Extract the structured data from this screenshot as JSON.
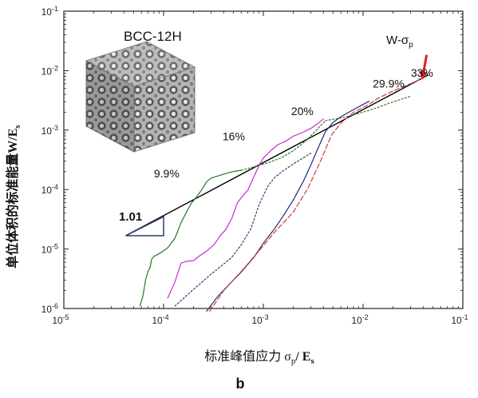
{
  "chart_data": {
    "type": "line",
    "scale": "log-log",
    "ylabel": "单位体积的标准能量W/E",
    "ylabel_sub": "s",
    "xlabel": "标准峰值应力 σ",
    "xlabel_sub1": "p",
    "xlabel_mid": "/ E",
    "xlabel_sub2": "s",
    "panel_label": "b",
    "inset_label": "BCC-12H",
    "xlim": [
      1e-05,
      0.1
    ],
    "ylim": [
      1e-06,
      0.1
    ],
    "x_ticks": [
      {
        "value": 1e-05,
        "base": "10",
        "exp": "-5"
      },
      {
        "value": 0.0001,
        "base": "10",
        "exp": "-4"
      },
      {
        "value": 0.001,
        "base": "10",
        "exp": "-3"
      },
      {
        "value": 0.01,
        "base": "10",
        "exp": "-2"
      },
      {
        "value": 0.1,
        "base": "10",
        "exp": "-1"
      }
    ],
    "y_ticks": [
      {
        "value": 1e-06,
        "base": "10",
        "exp": "-6"
      },
      {
        "value": 1e-05,
        "base": "10",
        "exp": "-5"
      },
      {
        "value": 0.0001,
        "base": "10",
        "exp": "-4"
      },
      {
        "value": 0.001,
        "base": "10",
        "exp": "-3"
      },
      {
        "value": 0.01,
        "base": "10",
        "exp": "-2"
      },
      {
        "value": 0.1,
        "base": "10",
        "exp": "-1"
      }
    ],
    "series": [
      {
        "name": "W-σp",
        "label_text": "W-σ",
        "label_sub": "p",
        "color": "#000000",
        "dash": "solid",
        "x": [
          4.2e-05,
          0.045
        ],
        "y": [
          1.68e-05,
          0.0085
        ]
      },
      {
        "color": "#1f7a2a",
        "dash": "solid",
        "x": [
          5.8e-05,
          6.2e-05,
          6.6e-05,
          7e-05,
          7.3e-05,
          7.6e-05,
          8e-05,
          8.5e-05,
          9.5e-05,
          0.00011,
          0.00013,
          0.00015,
          0.00017,
          0.00019,
          0.00021,
          0.00024,
          0.00027,
          0.0003,
          0.00033,
          0.00036,
          0.0004,
          0.00045,
          0.0005,
          0.00055,
          0.0006
        ],
        "y": [
          1.1e-06,
          1.6e-06,
          3e-06,
          4.3e-06,
          4.8e-06,
          6.8e-06,
          7.5e-06,
          7.9e-06,
          8.8e-06,
          1.05e-05,
          1.52e-05,
          2.8e-05,
          4.2e-05,
          5.9e-05,
          7.2e-05,
          9.8e-05,
          0.000136,
          0.000156,
          0.000164,
          0.000172,
          0.000182,
          0.000192,
          0.000201,
          0.000206,
          0.000211
        ]
      },
      {
        "color": "#1f7a2a",
        "dash": "dotted",
        "x": [
          0.0006,
          0.0008,
          0.0011,
          0.0015,
          0.002,
          0.0027,
          0.0035,
          0.0042
        ],
        "y": [
          0.000211,
          0.00024,
          0.00028,
          0.00034,
          0.00045,
          0.00067,
          0.00105,
          0.00145
        ]
      },
      {
        "color": "#cc2bcc",
        "dash": "solid",
        "x": [
          0.00011,
          0.00013,
          0.00015,
          0.00017,
          0.0002,
          0.00023,
          0.00027,
          0.00032,
          0.00037,
          0.00042,
          0.00048,
          0.00055,
          0.00062,
          0.0007,
          0.0008,
          0.0009,
          0.001,
          0.0012,
          0.0014,
          0.0017,
          0.002,
          0.0025,
          0.003,
          0.0035,
          0.004
        ],
        "y": [
          1.5e-06,
          2.8e-06,
          5.8e-06,
          6.2e-06,
          6.4e-06,
          7.7e-06,
          9.2e-06,
          1.18e-05,
          1.68e-05,
          2.12e-05,
          3.2e-05,
          6e-05,
          7.8e-05,
          9.8e-05,
          0.000162,
          0.00025,
          0.00034,
          0.00046,
          0.00057,
          0.00066,
          0.00079,
          0.00092,
          0.00107,
          0.00128,
          0.00154
        ]
      },
      {
        "color": "#2c3e73",
        "dash": "dotted",
        "x": [
          0.00013,
          0.00016,
          0.0002,
          0.00025,
          0.0003,
          0.00038,
          0.00048,
          0.0006,
          0.00075,
          0.0009,
          0.0011,
          0.0013,
          0.0016,
          0.002,
          0.0025,
          0.003
        ],
        "y": [
          1.1e-06,
          1.5e-06,
          2.1e-06,
          2.9e-06,
          3.8e-06,
          5.2e-06,
          7.2e-06,
          1.18e-05,
          2.2e-05,
          5.4e-05,
          0.000112,
          0.00016,
          0.00021,
          0.00027,
          0.00034,
          0.00041
        ]
      },
      {
        "color": "#1f2a7a",
        "dash": "solid",
        "x": [
          0.00027,
          0.00035,
          0.00045,
          0.0006,
          0.0008,
          0.001,
          0.0013,
          0.0016,
          0.002,
          0.0025,
          0.003,
          0.0035,
          0.0042,
          0.005,
          0.006,
          0.0075,
          0.0095,
          0.0115
        ],
        "y": [
          9e-07,
          1.6e-06,
          2.5e-06,
          4.1e-06,
          7.2e-06,
          1.25e-05,
          2.2e-05,
          3.7e-05,
          6.7e-05,
          0.000134,
          0.00026,
          0.00048,
          0.00095,
          0.00135,
          0.00168,
          0.00208,
          0.00258,
          0.00307
        ]
      },
      {
        "color": "#d13a3a",
        "dash": "dashed",
        "x": [
          0.00029,
          0.0004,
          0.0006,
          0.0009,
          0.0013,
          0.002,
          0.0028,
          0.0038,
          0.0048,
          0.006,
          0.008,
          0.011,
          0.014,
          0.018,
          0.024,
          0.032,
          0.04
        ],
        "y": [
          9e-07,
          2e-06,
          4.2e-06,
          9.2e-06,
          1.92e-05,
          4.2e-05,
          0.000105,
          0.00032,
          0.00082,
          0.00132,
          0.00198,
          0.0026,
          0.0034,
          0.0042,
          0.0052,
          0.0063,
          0.0075
        ]
      },
      {
        "color": "#556b2f",
        "dash": "dotted",
        "x": [
          0.0042,
          0.005,
          0.006,
          0.008,
          0.011,
          0.014,
          0.018,
          0.024,
          0.03
        ],
        "y": [
          0.00145,
          0.00152,
          0.0016,
          0.0018,
          0.0021,
          0.0024,
          0.0028,
          0.0033,
          0.0037
        ]
      }
    ],
    "annotations": [
      {
        "text": "9.9%",
        "x": 8e-05,
        "y": 0.00016
      },
      {
        "text": "16%",
        "x": 0.00039,
        "y": 0.00067
      },
      {
        "text": "20%",
        "x": 0.0019,
        "y": 0.0018
      },
      {
        "text": "29.9%",
        "x": 0.0125,
        "y": 0.0052
      },
      {
        "text": "33%",
        "x": 0.0301,
        "y": 0.0079
      }
    ],
    "slope_label": "1.01",
    "slope_triangle": {
      "x": [
        4.2e-05,
        0.0001
      ],
      "y": [
        1.68e-05,
        3.5e-05
      ],
      "color": "#2c3e73"
    },
    "arrow_color": "#e02020"
  }
}
